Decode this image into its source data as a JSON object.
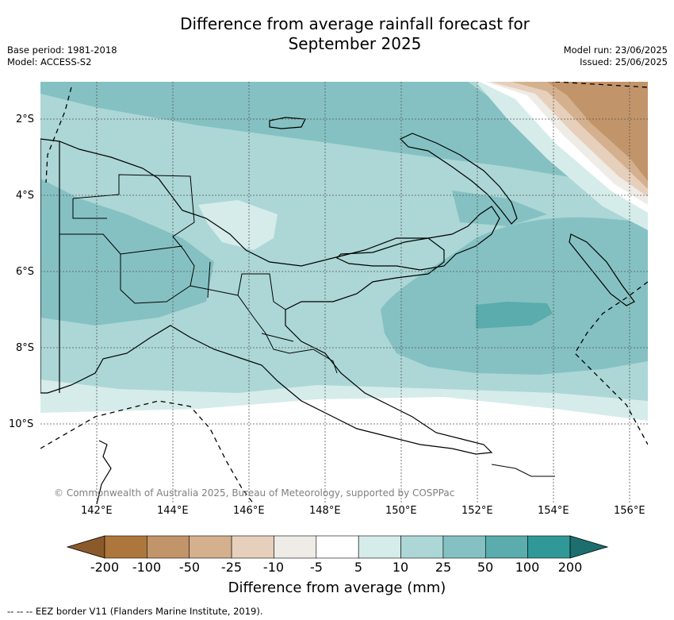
{
  "title_line1": "Difference from average rainfall forecast for",
  "title_line2": "September 2025",
  "base_period": "Base period: 1981-2018",
  "model": "Model: ACCESS-S2",
  "model_run": "Model run: 23/06/2025",
  "issued": "Issued: 25/06/2025",
  "copyright": "© Commonwealth of Australia 2025, Bureau of Meteorology, supported by COSPPac",
  "lon_labels": [
    "142°E",
    "144°E",
    "146°E",
    "148°E",
    "150°E",
    "152°E",
    "154°E",
    "156°E"
  ],
  "lat_labels": [
    "2°S",
    "4°S",
    "6°S",
    "8°S",
    "10°S"
  ],
  "colorbar": {
    "label": "Difference from average (mm)",
    "ticks": [
      "-200",
      "-100",
      "-50",
      "-25",
      "-10",
      "-5",
      "5",
      "10",
      "25",
      "50",
      "100",
      "200"
    ],
    "colors": [
      "#8b5a2b",
      "#ad763c",
      "#c2946a",
      "#d4b08e",
      "#e6d0bb",
      "#efebe7",
      "#ffffff",
      "#d5ecea",
      "#acd7d6",
      "#85c1c2",
      "#5aacad",
      "#319898",
      "#1d6e6e"
    ]
  },
  "eez_note": "-- -- -- EEZ border V11 (Flanders Marine Institute, 2019)."
}
